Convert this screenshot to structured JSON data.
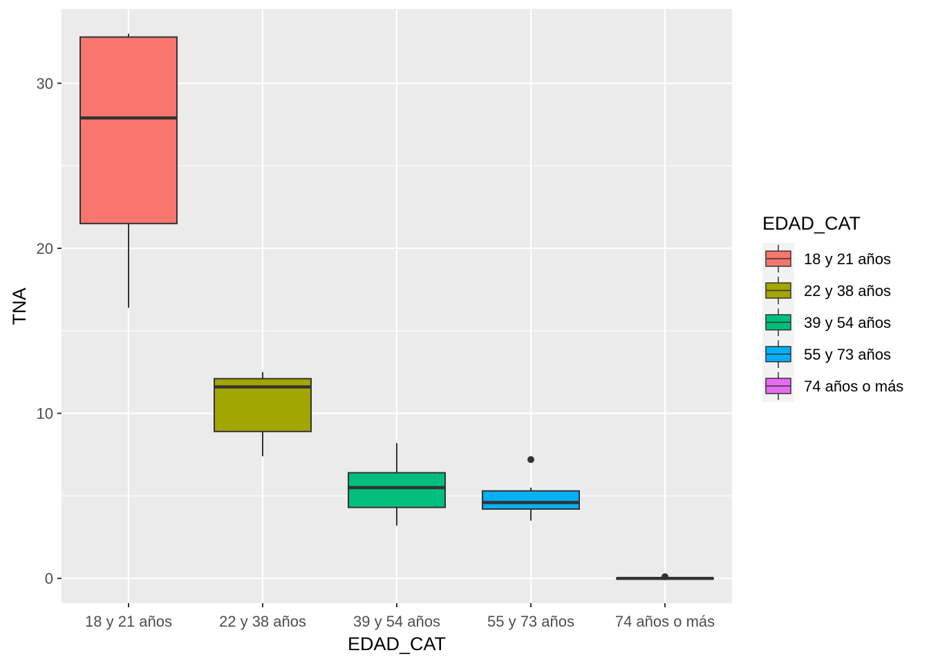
{
  "chart_data": {
    "type": "boxplot",
    "xlabel": "EDAD_CAT",
    "ylabel": "TNA",
    "ylim": [
      -1.5,
      34.5
    ],
    "yticks": [
      0,
      10,
      20,
      30
    ],
    "ytick_labels": [
      "0",
      "10",
      "20",
      "30"
    ],
    "grid": true,
    "legend": {
      "title": "EDAD_CAT",
      "position": "right"
    },
    "categories": [
      "18 y 21 años",
      "22 y 38 años",
      "39 y 54 años",
      "55 y 73 años",
      "74 años o más"
    ],
    "boxes": [
      {
        "category": "18 y 21 años",
        "color": "#F8766D",
        "min": 16.4,
        "q1": 21.5,
        "median": 27.9,
        "q3": 32.8,
        "max": 33.0,
        "outliers": []
      },
      {
        "category": "22 y 38 años",
        "color": "#A3A500",
        "min": 7.4,
        "q1": 8.9,
        "median": 11.6,
        "q3": 12.1,
        "max": 12.5,
        "outliers": []
      },
      {
        "category": "39 y 54 años",
        "color": "#00BF7D",
        "min": 3.2,
        "q1": 4.3,
        "median": 5.5,
        "q3": 6.4,
        "max": 8.2,
        "outliers": []
      },
      {
        "category": "55 y 73 años",
        "color": "#00B0F6",
        "min": 3.5,
        "q1": 4.2,
        "median": 4.6,
        "q3": 5.3,
        "max": 5.5,
        "outliers": [
          7.2
        ]
      },
      {
        "category": "74 años o más",
        "color": "#E76BF3",
        "min": 0.0,
        "q1": 0.0,
        "median": 0.0,
        "q3": 0.0,
        "max": 0.0,
        "outliers": [
          0.1
        ]
      }
    ]
  }
}
